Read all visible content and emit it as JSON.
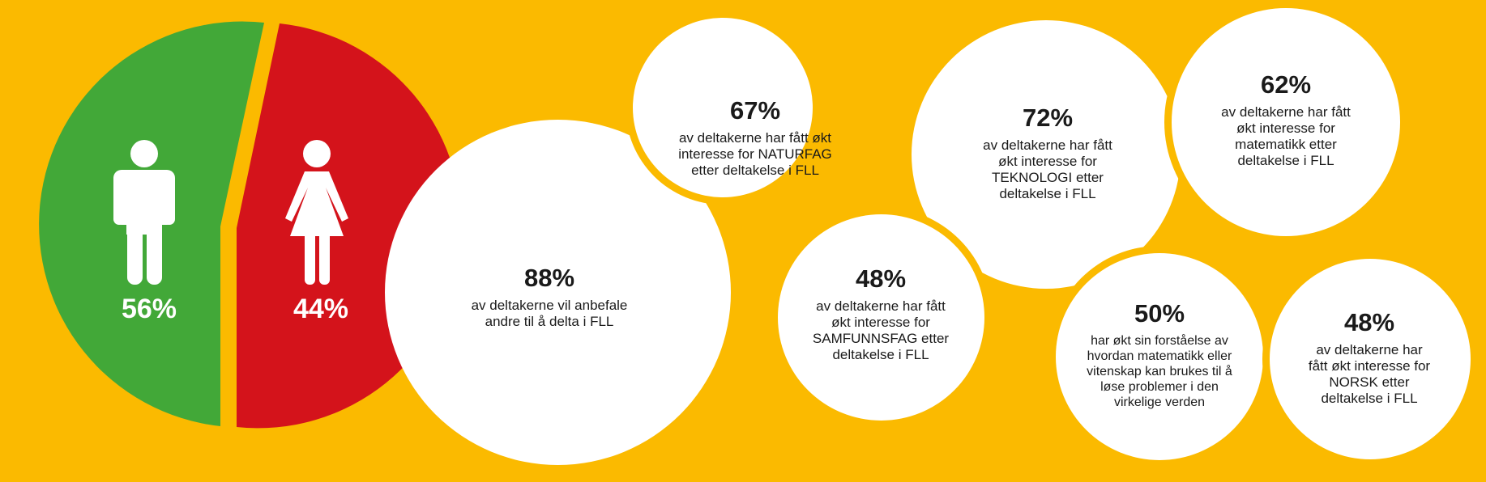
{
  "colors": {
    "background": "#FBBA00",
    "male_slice": "#42A838",
    "female_slice": "#D4131B",
    "bubble": "#FFFFFF",
    "text": "#1A1A1A"
  },
  "gender": {
    "male": {
      "value": 56,
      "label": "56%",
      "icon": "male-person-icon"
    },
    "female": {
      "value": 44,
      "label": "44%",
      "icon": "female-person-icon"
    }
  },
  "stats": [
    {
      "percent": "88%",
      "text": "av deltakerne vil anbefale andre til å delta i FLL"
    },
    {
      "percent": "67%",
      "text": "av deltakerne har fått økt interesse for NATURFAG etter deltakelse i FLL"
    },
    {
      "percent": "48%",
      "text": "av deltakerne har fått økt interesse for SAMFUNNSFAG etter deltakelse i FLL"
    },
    {
      "percent": "72%",
      "text": "av deltakerne har fått økt interesse for TEKNOLOGI etter deltakelse i FLL"
    },
    {
      "percent": "62%",
      "text": "av deltakerne har fått økt interesse for matematikk etter deltakelse i FLL"
    },
    {
      "percent": "50%",
      "text": "har økt sin forståelse av hvordan matematikk eller vitenskap kan brukes til å løse problemer i den virkelige verden"
    },
    {
      "percent": "48%",
      "text": "av deltakerne har fått økt interesse for NORSK etter deltakelse i FLL"
    }
  ]
}
